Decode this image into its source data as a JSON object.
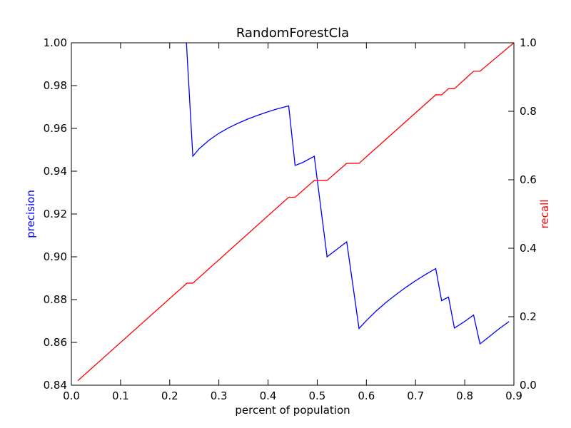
{
  "chart_data": {
    "type": "line",
    "title": "RandomForestCla",
    "xlabel": "percent of population",
    "ylabel_left": "precision",
    "ylabel_right": "recall",
    "xlim": [
      0.0,
      0.9
    ],
    "ylim_left": [
      0.84,
      1.0
    ],
    "ylim_right": [
      0.0,
      1.0
    ],
    "x_ticks": [
      "0.0",
      "0.1",
      "0.2",
      "0.3",
      "0.4",
      "0.5",
      "0.6",
      "0.7",
      "0.8",
      "0.9"
    ],
    "y_ticks_left": [
      "0.84",
      "0.86",
      "0.88",
      "0.90",
      "0.92",
      "0.94",
      "0.96",
      "0.98",
      "1.00"
    ],
    "y_ticks_right": [
      "0.0",
      "0.2",
      "0.4",
      "0.6",
      "0.8",
      "1.0"
    ],
    "grid": false,
    "series": [
      {
        "name": "precision",
        "axis": "left",
        "color": "#0000ff",
        "x": [
          0.234,
          0.247,
          0.26,
          0.28,
          0.3,
          0.32,
          0.34,
          0.36,
          0.38,
          0.4,
          0.42,
          0.442,
          0.455,
          0.47,
          0.494,
          0.52,
          0.54,
          0.56,
          0.585,
          0.6,
          0.62,
          0.64,
          0.66,
          0.68,
          0.7,
          0.72,
          0.741,
          0.753,
          0.767,
          0.779,
          0.8,
          0.818,
          0.831,
          0.85,
          0.87,
          0.89
        ],
        "y": [
          1.0,
          0.947,
          0.9505,
          0.9545,
          0.9577,
          0.9603,
          0.9625,
          0.9645,
          0.9662,
          0.9678,
          0.9692,
          0.9705,
          0.9427,
          0.944,
          0.947,
          0.9,
          0.9035,
          0.907,
          0.8665,
          0.8702,
          0.8747,
          0.8787,
          0.8823,
          0.8857,
          0.8888,
          0.8917,
          0.8945,
          0.8795,
          0.8812,
          0.8667,
          0.8698,
          0.8728,
          0.8593,
          0.8627,
          0.8664,
          0.8697
        ]
      },
      {
        "name": "recall",
        "axis": "right",
        "color": "#ff0000",
        "x": [
          0.013,
          0.235,
          0.247,
          0.442,
          0.455,
          0.494,
          0.52,
          0.56,
          0.585,
          0.741,
          0.753,
          0.767,
          0.779,
          0.818,
          0.831,
          0.9
        ],
        "y": [
          0.013,
          0.298,
          0.298,
          0.549,
          0.549,
          0.598,
          0.598,
          0.648,
          0.648,
          0.848,
          0.848,
          0.866,
          0.866,
          0.917,
          0.917,
          1.0
        ]
      }
    ]
  }
}
